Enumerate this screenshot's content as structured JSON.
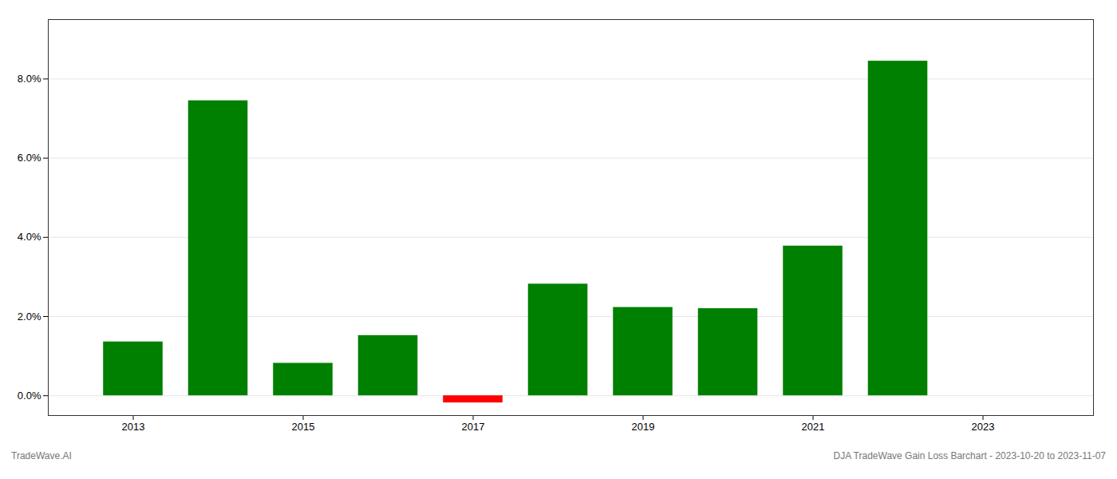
{
  "chart_data": {
    "type": "bar",
    "x": [
      2013,
      2014,
      2015,
      2016,
      2017,
      2018,
      2019,
      2020,
      2021,
      2022,
      2023
    ],
    "values": [
      0.0136,
      0.0745,
      0.0082,
      0.0152,
      -0.0018,
      0.0282,
      0.0223,
      0.022,
      0.0378,
      0.0845,
      0.0
    ],
    "colors": [
      "#008000",
      "#008000",
      "#008000",
      "#008000",
      "#ff0000",
      "#008000",
      "#008000",
      "#008000",
      "#008000",
      "#008000",
      "#008000"
    ],
    "xlim": [
      2012.0,
      2024.3
    ],
    "xticks": [
      2013,
      2015,
      2017,
      2019,
      2021,
      2023
    ],
    "ylim": [
      -0.005,
      0.095
    ],
    "yticks": [
      {
        "value": 0,
        "label": "0.0%"
      },
      {
        "value": 0.02,
        "label": "2.0%"
      },
      {
        "value": 0.04,
        "label": "4.0%"
      },
      {
        "value": 0.06,
        "label": "6.0%"
      },
      {
        "value": 0.08,
        "label": "8.0%"
      }
    ],
    "grid": true,
    "annotations": [
      "TradeWave.AI",
      "DJA TradeWave Gain Loss Barchart - 2023-10-20 to 2023-11-07"
    ]
  }
}
